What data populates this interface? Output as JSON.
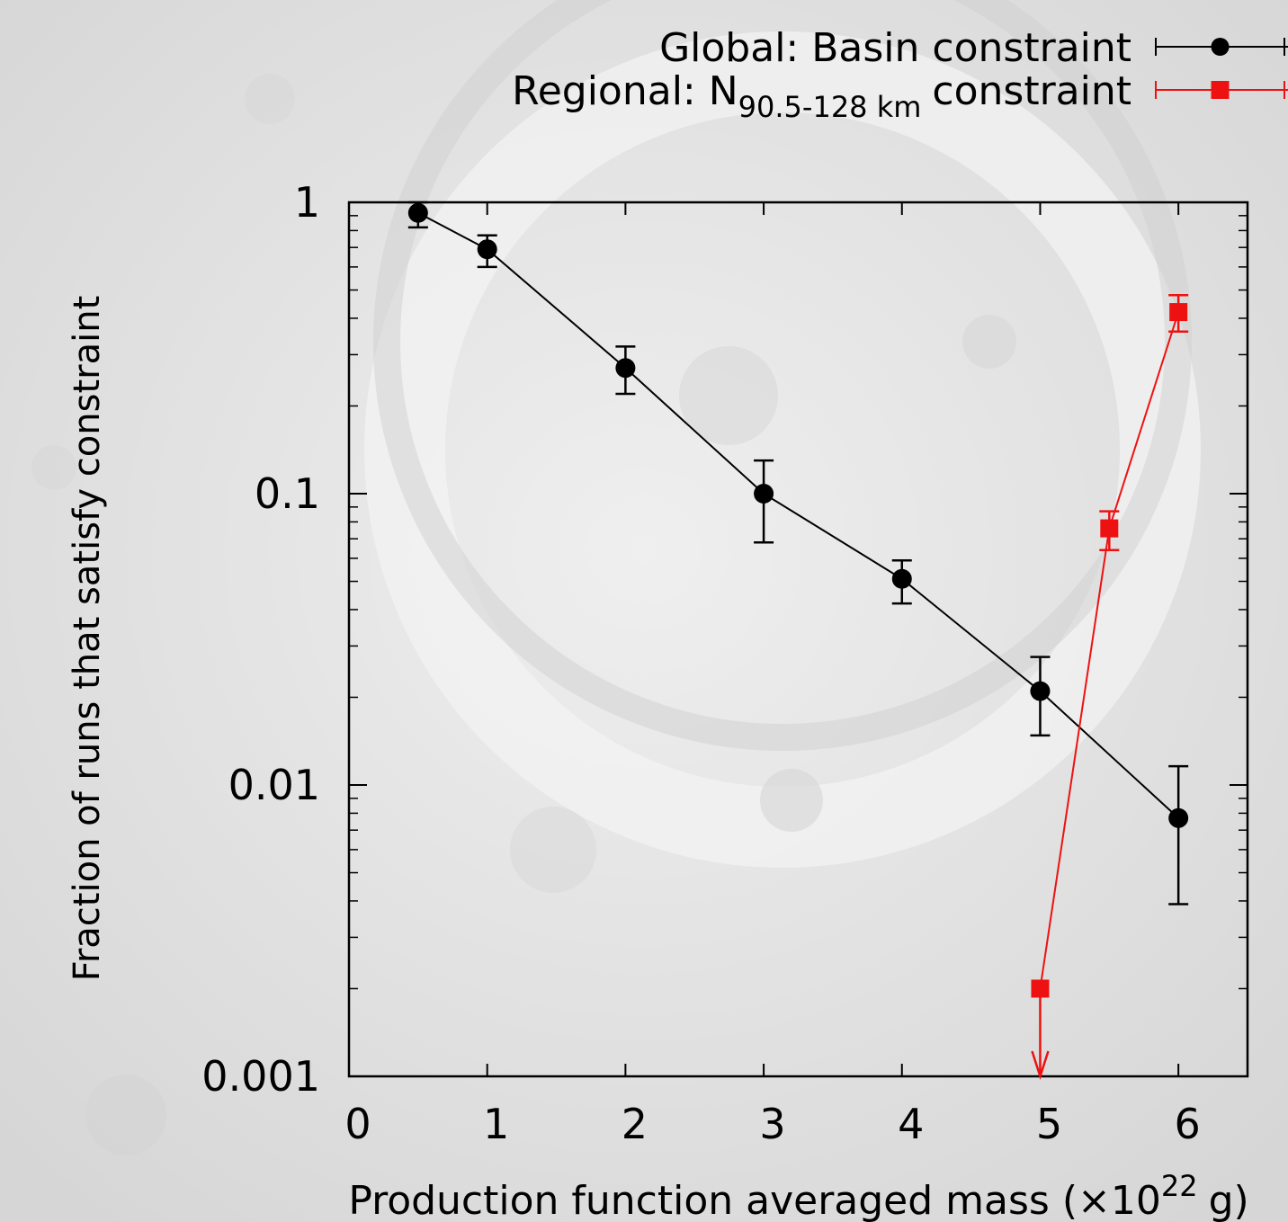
{
  "chart_data": {
    "type": "errorbar-line",
    "xlabel": "Production function averaged mass (×10",
    "xlabel_superscript": "22",
    "xlabel_suffix": "g)",
    "ylabel": "Fraction of runs that satisfy constraint",
    "xlim": [
      0,
      6.5
    ],
    "xticks": [
      0,
      1,
      2,
      3,
      4,
      5,
      6
    ],
    "ylim": [
      0.001,
      1
    ],
    "yticks": [
      1,
      0.1,
      0.01,
      0.001
    ],
    "yscale": "log",
    "legend": "top-right",
    "series": [
      {
        "name": "Global: Basin constraint",
        "color": "#000000",
        "marker": "circle",
        "x": [
          0.5,
          1,
          2,
          3,
          4,
          5,
          6
        ],
        "values": [
          0.92,
          0.69,
          0.27,
          0.1,
          0.051,
          0.021,
          0.0077
        ],
        "err_minus": [
          0.1,
          0.09,
          0.05,
          0.032,
          0.009,
          0.0062,
          0.0038
        ],
        "err_plus": [
          0.08,
          0.08,
          0.05,
          0.03,
          0.008,
          0.0065,
          0.0039
        ],
        "upper_limit": [
          false,
          false,
          false,
          false,
          false,
          false,
          false
        ]
      },
      {
        "name": "Regional: N",
        "name_subscript": "90.5-128 km",
        "name_suffix": "constraint",
        "color": "#ee1111",
        "marker": "square",
        "x": [
          5,
          5.5,
          6
        ],
        "values": [
          0.002,
          0.076,
          0.42
        ],
        "err_minus": [
          null,
          0.012,
          0.06
        ],
        "err_plus": [
          null,
          0.011,
          0.06
        ],
        "upper_limit": [
          true,
          false,
          false
        ]
      }
    ]
  }
}
